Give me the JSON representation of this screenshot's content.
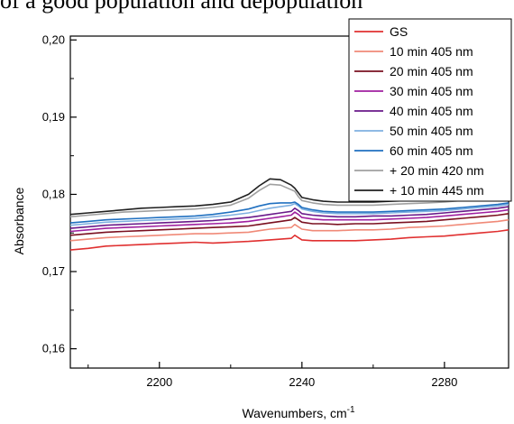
{
  "header": {
    "caption": "of a good population and depopulation"
  },
  "chart_data": {
    "type": "line",
    "xlabel": "Wavenumbers, cm",
    "xlabel_superscript": "-1",
    "ylabel": "Absorbance",
    "xlim": [
      2175,
      2298
    ],
    "ylim": [
      0.1575,
      0.2005
    ],
    "xticks": [
      2200,
      2240,
      2280
    ],
    "xtick_labels": [
      "2200",
      "2240",
      "2280"
    ],
    "yticks": [
      0.16,
      0.17,
      0.18,
      0.19,
      0.2
    ],
    "ytick_labels": [
      "0,16",
      "0,17",
      "0,18",
      "0,19",
      "0,20"
    ],
    "legend_position": "top-right",
    "x": [
      2175,
      2180,
      2185,
      2190,
      2195,
      2200,
      2205,
      2210,
      2215,
      2220,
      2225,
      2228,
      2231,
      2234,
      2237,
      2238,
      2239,
      2240,
      2243,
      2246,
      2250,
      2255,
      2260,
      2265,
      2270,
      2275,
      2280,
      2285,
      2290,
      2295,
      2298
    ],
    "series": [
      {
        "name": "GS",
        "color": "#e03030",
        "values": [
          0.1728,
          0.173,
          0.1733,
          0.1734,
          0.1735,
          0.1736,
          0.1737,
          0.1738,
          0.1737,
          0.1738,
          0.1739,
          0.174,
          0.1741,
          0.1742,
          0.1743,
          0.1747,
          0.1744,
          0.1741,
          0.174,
          0.174,
          0.174,
          0.174,
          0.1741,
          0.1742,
          0.1744,
          0.1745,
          0.1746,
          0.1748,
          0.175,
          0.1752,
          0.1754
        ]
      },
      {
        "name": "10 min 405 nm",
        "color": "#f08a78",
        "values": [
          0.174,
          0.1742,
          0.1744,
          0.1745,
          0.1746,
          0.1747,
          0.1748,
          0.1749,
          0.1749,
          0.175,
          0.1751,
          0.1753,
          0.1755,
          0.1756,
          0.1757,
          0.1761,
          0.1758,
          0.1755,
          0.1753,
          0.1753,
          0.1753,
          0.1754,
          0.1754,
          0.1755,
          0.1757,
          0.1758,
          0.1759,
          0.1761,
          0.1763,
          0.1765,
          0.1767
        ]
      },
      {
        "name": "20 min 405 nm",
        "color": "#7a1020",
        "values": [
          0.1747,
          0.1749,
          0.1751,
          0.1752,
          0.1753,
          0.1754,
          0.1755,
          0.1756,
          0.1757,
          0.1758,
          0.1759,
          0.1761,
          0.1763,
          0.1765,
          0.1767,
          0.177,
          0.1767,
          0.1764,
          0.1762,
          0.1762,
          0.1761,
          0.1762,
          0.1762,
          0.1763,
          0.1764,
          0.1765,
          0.1767,
          0.1769,
          0.1771,
          0.1773,
          0.1775
        ]
      },
      {
        "name": "30 min 405 nm",
        "color": "#a020a0",
        "values": [
          0.1752,
          0.1754,
          0.1756,
          0.1757,
          0.1758,
          0.1759,
          0.176,
          0.1761,
          0.1762,
          0.1763,
          0.1765,
          0.1767,
          0.1769,
          0.1771,
          0.1773,
          0.1777,
          0.1774,
          0.177,
          0.1768,
          0.1767,
          0.1767,
          0.1767,
          0.1767,
          0.1768,
          0.1769,
          0.177,
          0.1772,
          0.1774,
          0.1776,
          0.1778,
          0.178
        ]
      },
      {
        "name": "40 min 405 nm",
        "color": "#6a1a8a",
        "values": [
          0.1756,
          0.1758,
          0.176,
          0.1761,
          0.1762,
          0.1763,
          0.1764,
          0.1765,
          0.1766,
          0.1768,
          0.177,
          0.1772,
          0.1774,
          0.1776,
          0.1778,
          0.1782,
          0.1779,
          0.1775,
          0.1773,
          0.1772,
          0.1771,
          0.1771,
          0.1772,
          0.1772,
          0.1773,
          0.1774,
          0.1776,
          0.1778,
          0.178,
          0.1782,
          0.1784
        ]
      },
      {
        "name": "50 min 405 nm",
        "color": "#7fb0e0",
        "values": [
          0.176,
          0.1762,
          0.1764,
          0.1765,
          0.1766,
          0.1767,
          0.1768,
          0.1769,
          0.1771,
          0.1773,
          0.1776,
          0.1779,
          0.1782,
          0.1784,
          0.1786,
          0.1788,
          0.1785,
          0.1781,
          0.1778,
          0.1776,
          0.1775,
          0.1775,
          0.1775,
          0.1776,
          0.1777,
          0.1778,
          0.1779,
          0.1781,
          0.1783,
          0.1785,
          0.1787
        ]
      },
      {
        "name": "60 min 405 nm",
        "color": "#2070c0",
        "values": [
          0.1763,
          0.1765,
          0.1767,
          0.1768,
          0.1769,
          0.177,
          0.1771,
          0.1772,
          0.1774,
          0.1777,
          0.1781,
          0.1785,
          0.1788,
          0.1789,
          0.1789,
          0.179,
          0.1787,
          0.1783,
          0.178,
          0.1778,
          0.1777,
          0.1777,
          0.1777,
          0.1778,
          0.1779,
          0.178,
          0.1781,
          0.1783,
          0.1785,
          0.1787,
          0.1789
        ]
      },
      {
        "name": "+ 20 min 420 nm",
        "color": "#a0a0a0",
        "values": [
          0.1771,
          0.1773,
          0.1775,
          0.1777,
          0.1778,
          0.1779,
          0.178,
          0.1781,
          0.1783,
          0.1786,
          0.1795,
          0.1805,
          0.1813,
          0.1812,
          0.1806,
          0.1804,
          0.1797,
          0.1792,
          0.1789,
          0.1787,
          0.1786,
          0.1786,
          0.1786,
          0.1787,
          0.1788,
          0.1789,
          0.179,
          0.1792,
          0.1794,
          0.1796,
          0.1797
        ]
      },
      {
        "name": "+ 10 min 445 nm",
        "color": "#202020",
        "values": [
          0.1774,
          0.1776,
          0.1778,
          0.178,
          0.1782,
          0.1783,
          0.1784,
          0.1785,
          0.1787,
          0.179,
          0.18,
          0.1811,
          0.182,
          0.1819,
          0.1812,
          0.1808,
          0.1802,
          0.1796,
          0.1793,
          0.1791,
          0.179,
          0.179,
          0.179,
          0.1791,
          0.1792,
          0.1793,
          0.1794,
          0.1796,
          0.1798,
          0.18,
          0.1801
        ]
      }
    ]
  }
}
